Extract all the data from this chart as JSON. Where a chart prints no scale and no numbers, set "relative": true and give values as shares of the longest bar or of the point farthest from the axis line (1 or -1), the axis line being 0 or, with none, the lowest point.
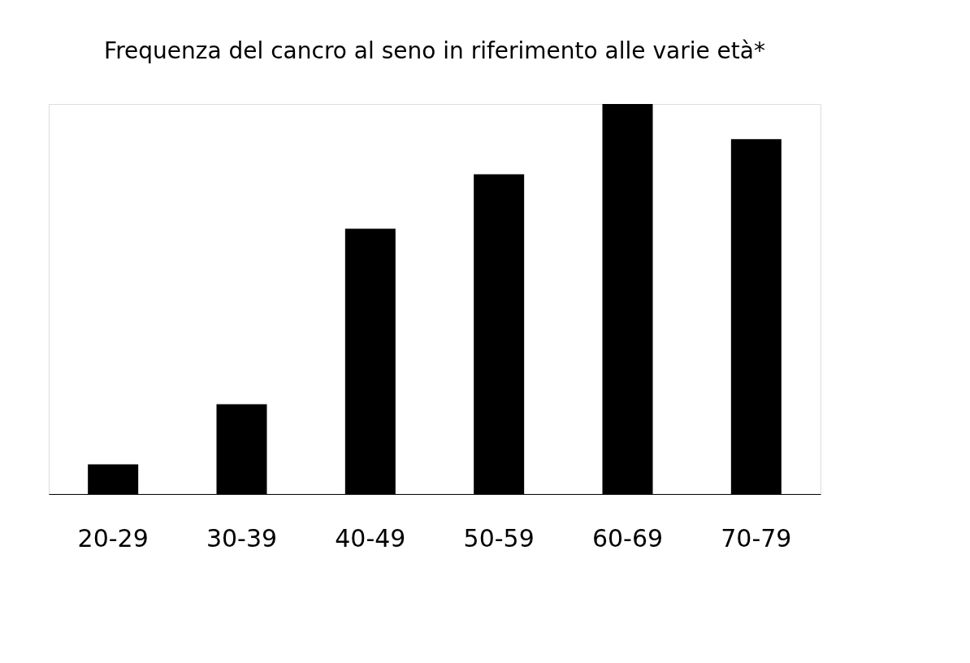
{
  "chart_data": {
    "type": "bar",
    "title": "Frequenza del cancro al seno in riferimento alle varie età*",
    "relative": true,
    "categories": [
      "20-29",
      "30-39",
      "40-49",
      "50-59",
      "60-69",
      "70-79"
    ],
    "values": [
      0.076,
      0.23,
      0.68,
      0.82,
      1,
      0.91
    ],
    "color": "#000000",
    "grid": false
  }
}
